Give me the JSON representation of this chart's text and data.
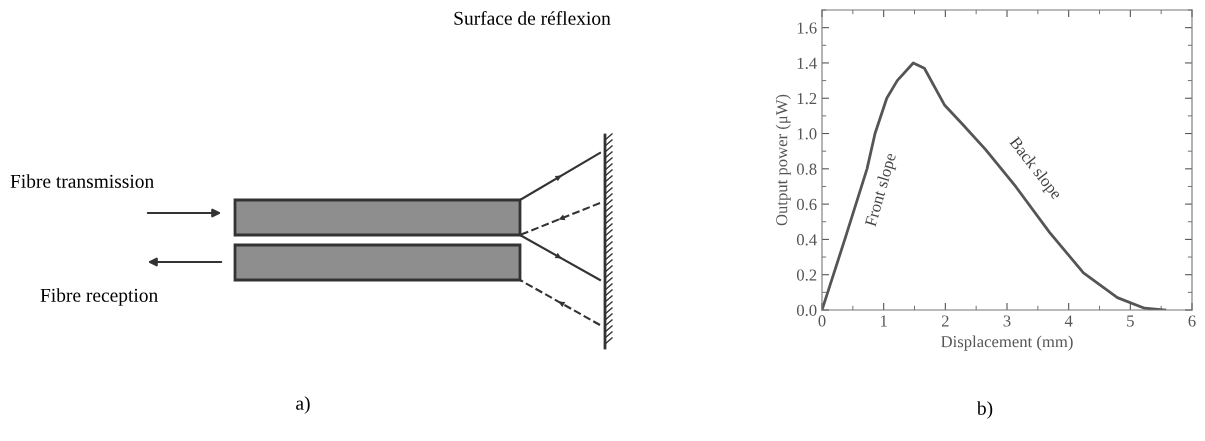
{
  "chart_data": [
    {
      "type": "other",
      "annotations": [
        "Fibre transmission",
        "Fibre reception",
        "Surface de réflexion",
        "a)"
      ]
    },
    {
      "type": "line",
      "xlabel": "Displacement (mm)",
      "ylabel": "Output power (μW)",
      "x": [
        0,
        0.12,
        0.37,
        0.73,
        0.86,
        1.05,
        1.22,
        1.48,
        1.66,
        1.99,
        2.26,
        2.65,
        3.14,
        3.69,
        4.24,
        4.79,
        5.23,
        5.56
      ],
      "series": [
        {
          "color": "#555555",
          "values": [
            0,
            0.13,
            0.4,
            0.8,
            1.0,
            1.2,
            1.3,
            1.4,
            1.37,
            1.16,
            1.06,
            0.91,
            0.7,
            0.44,
            0.21,
            0.07,
            0.01,
            0
          ]
        }
      ],
      "xlim": [
        0,
        6
      ],
      "ylim": [
        0,
        1.7
      ],
      "xticks": [
        0,
        1,
        2,
        3,
        4,
        5,
        6
      ],
      "yticks": [
        {
          "value": 0,
          "label": "0.0"
        },
        {
          "value": 0.2,
          "label": "0.2"
        },
        {
          "value": 0.4,
          "label": "0.4"
        },
        {
          "value": 0.6,
          "label": "0.6"
        },
        {
          "value": 0.8,
          "label": "0.8"
        },
        {
          "value": 1.0,
          "label": "1.0"
        },
        {
          "value": 1.2,
          "label": "1.2"
        },
        {
          "value": 1.4,
          "label": "1.4"
        },
        {
          "value": 1.6,
          "label": "1.6"
        }
      ],
      "annotations": [
        "Front slope",
        "Back slope",
        "b)"
      ]
    }
  ]
}
